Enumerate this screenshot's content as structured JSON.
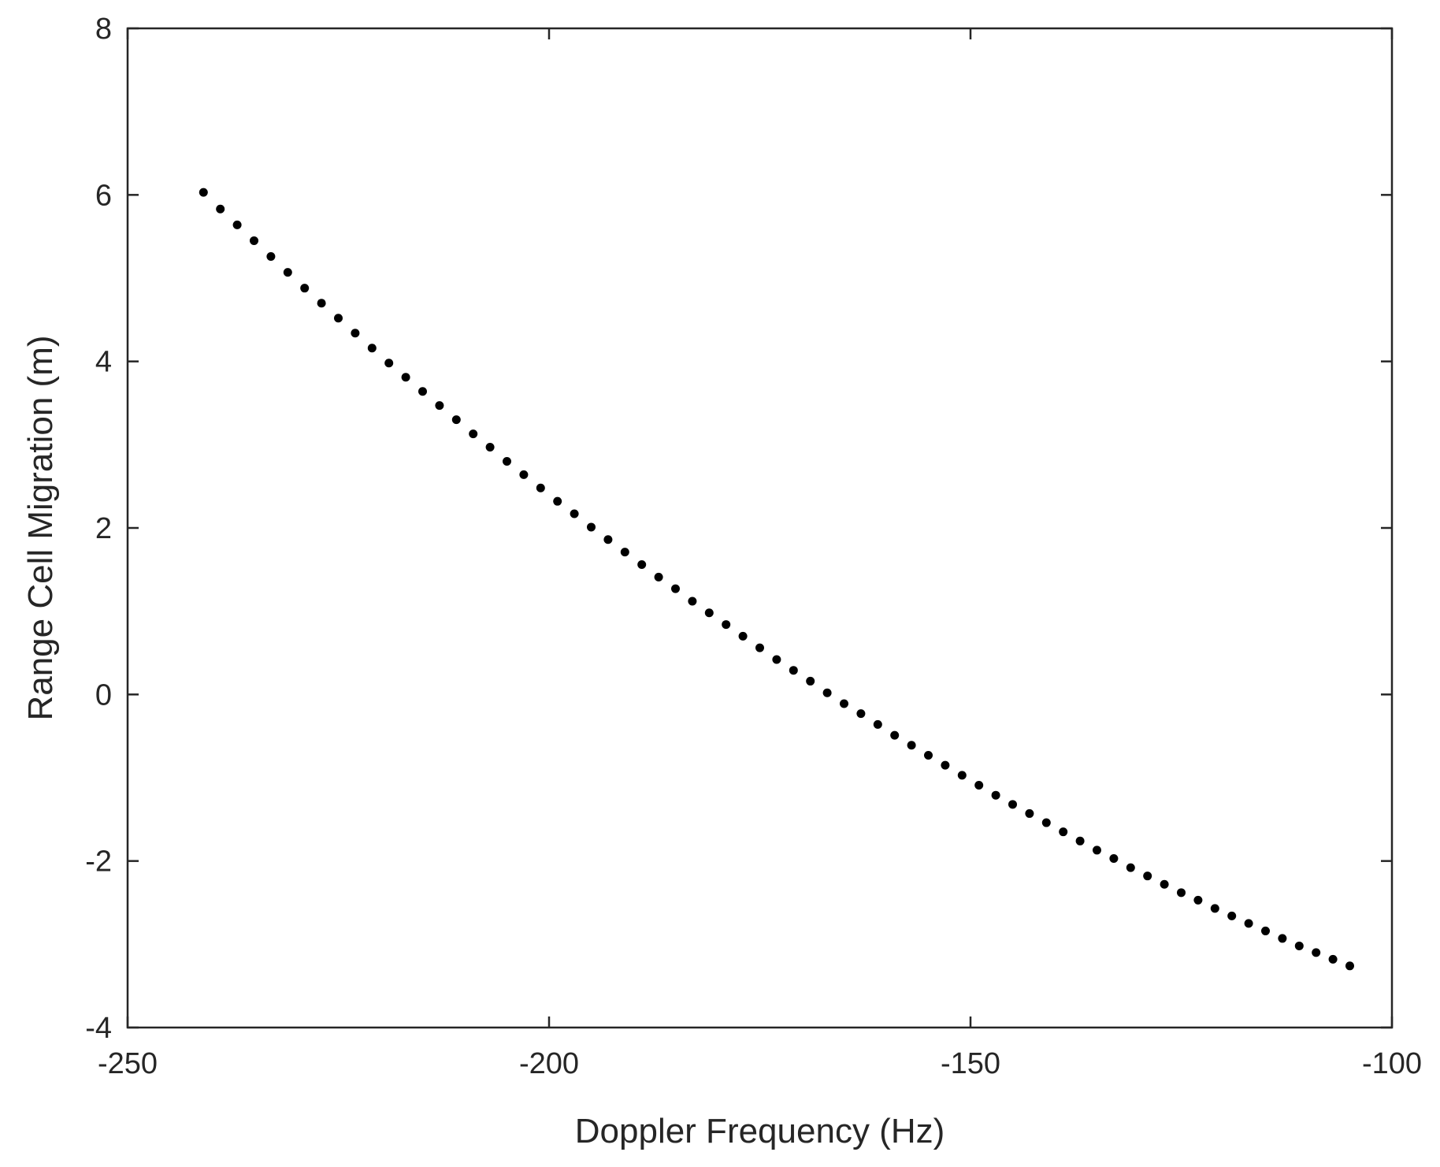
{
  "chart_data": {
    "type": "scatter",
    "title": "",
    "xlabel": "Doppler Frequency (Hz)",
    "ylabel": "Range Cell Migration (m)",
    "xlim": [
      -250,
      -100
    ],
    "ylim": [
      -4,
      8
    ],
    "xticks": [
      -250,
      -200,
      -150,
      -100
    ],
    "xtick_labels": [
      "-250",
      "-200",
      "-150",
      "-100"
    ],
    "yticks": [
      -4,
      -2,
      0,
      2,
      4,
      6,
      8
    ],
    "ytick_labels": [
      "-4",
      "-2",
      "0",
      "2",
      "4",
      "6",
      "8"
    ],
    "grid": false,
    "legend": "none",
    "marker_color": "#000000",
    "axis_color": "#262626",
    "series": [
      {
        "x": [
          -241,
          -239,
          -237,
          -235,
          -233,
          -231,
          -229,
          -227,
          -225,
          -223,
          -221,
          -219,
          -217,
          -215,
          -213,
          -211,
          -209,
          -207,
          -205,
          -203,
          -201,
          -199,
          -197,
          -195,
          -193,
          -191,
          -189,
          -187,
          -185,
          -183,
          -181,
          -179,
          -177,
          -175,
          -173,
          -171,
          -169,
          -167,
          -165,
          -163,
          -161,
          -159,
          -157,
          -155,
          -153,
          -151,
          -149,
          -147,
          -145,
          -143,
          -141,
          -139,
          -137,
          -135,
          -133,
          -131,
          -129,
          -127,
          -125,
          -123,
          -121,
          -119,
          -117,
          -115,
          -113,
          -111,
          -109,
          -107,
          -105
        ],
        "y": [
          6.03,
          5.83,
          5.64,
          5.45,
          5.26,
          5.07,
          4.88,
          4.7,
          4.52,
          4.34,
          4.16,
          3.98,
          3.81,
          3.64,
          3.47,
          3.3,
          3.13,
          2.97,
          2.8,
          2.64,
          2.48,
          2.32,
          2.17,
          2.01,
          1.86,
          1.71,
          1.56,
          1.41,
          1.27,
          1.12,
          0.98,
          0.84,
          0.7,
          0.56,
          0.42,
          0.29,
          0.16,
          0.02,
          -0.11,
          -0.23,
          -0.36,
          -0.49,
          -0.61,
          -0.73,
          -0.85,
          -0.97,
          -1.09,
          -1.21,
          -1.32,
          -1.43,
          -1.54,
          -1.65,
          -1.76,
          -1.87,
          -1.97,
          -2.08,
          -2.18,
          -2.28,
          -2.38,
          -2.47,
          -2.57,
          -2.66,
          -2.75,
          -2.84,
          -2.93,
          -3.02,
          -3.1,
          -3.18,
          -3.26
        ]
      }
    ]
  }
}
